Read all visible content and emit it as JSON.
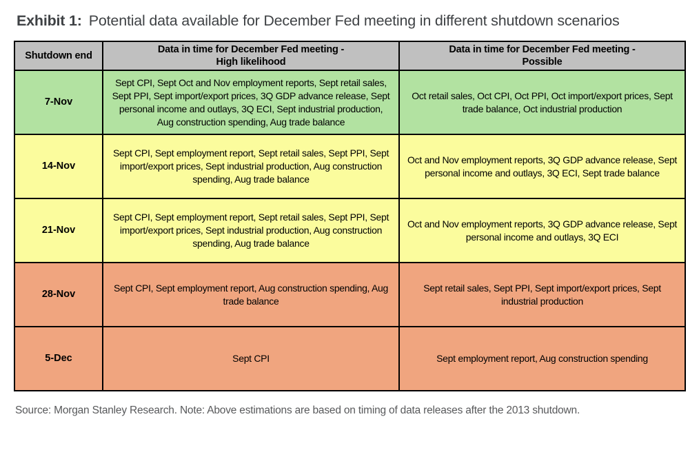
{
  "title": {
    "exhibit_label": "Exhibit 1:",
    "text": "Potential data available for December Fed meeting in different shutdown scenarios"
  },
  "table": {
    "header_bg": "#c0c0c0",
    "border_color": "#000000",
    "columns": {
      "shutdown_end": {
        "label": "Shutdown end"
      },
      "high_likelihood": {
        "label_line1": "Data in time for December Fed meeting -",
        "label_line2": "High likelihood"
      },
      "possible": {
        "label_line1": "Data in time for December Fed meeting -",
        "label_line2": "Possible"
      }
    },
    "rows": [
      {
        "date": "7-Nov",
        "color": "#b2e2a1",
        "high_likelihood": "Sept CPI, Sept Oct and Nov employment reports, Sept retail sales, Sept PPI, Sept import/export prices, 3Q GDP advance release, Sept personal income and outlays, 3Q ECI, Sept industrial production, Aug construction spending, Aug trade balance",
        "possible": "Oct retail sales, Oct CPI, Oct PPI, Oct import/export prices, Sept trade balance, Oct industrial production"
      },
      {
        "date": "14-Nov",
        "color": "#fbfc9d",
        "high_likelihood": "Sept CPI, Sept employment report, Sept retail sales, Sept PPI, Sept import/export prices, Sept industrial production, Aug construction spending, Aug trade balance",
        "possible": "Oct and Nov employment reports, 3Q GDP advance release, Sept personal income and outlays, 3Q ECI, Sept trade balance"
      },
      {
        "date": "21-Nov",
        "color": "#fbfc9d",
        "high_likelihood": "Sept CPI, Sept employment report, Sept retail sales, Sept PPI, Sept import/export prices, Sept industrial production, Aug construction spending, Aug trade balance",
        "possible": "Oct and Nov employment reports, 3Q GDP advance release, Sept personal income and outlays, 3Q ECI"
      },
      {
        "date": "28-Nov",
        "color": "#f0a57f",
        "high_likelihood": "Sept CPI, Sept employment report, Aug construction spending, Aug trade balance",
        "possible": "Sept retail sales, Sept PPI, Sept import/export prices, Sept industrial production"
      },
      {
        "date": "5-Dec",
        "color": "#f0a57f",
        "high_likelihood": "Sept CPI",
        "possible": "Sept employment report, Aug construction spending"
      }
    ]
  },
  "footer": {
    "source_note": "Source: Morgan Stanley Research. Note: Above estimations are based on timing of data releases after the 2013 shutdown."
  }
}
